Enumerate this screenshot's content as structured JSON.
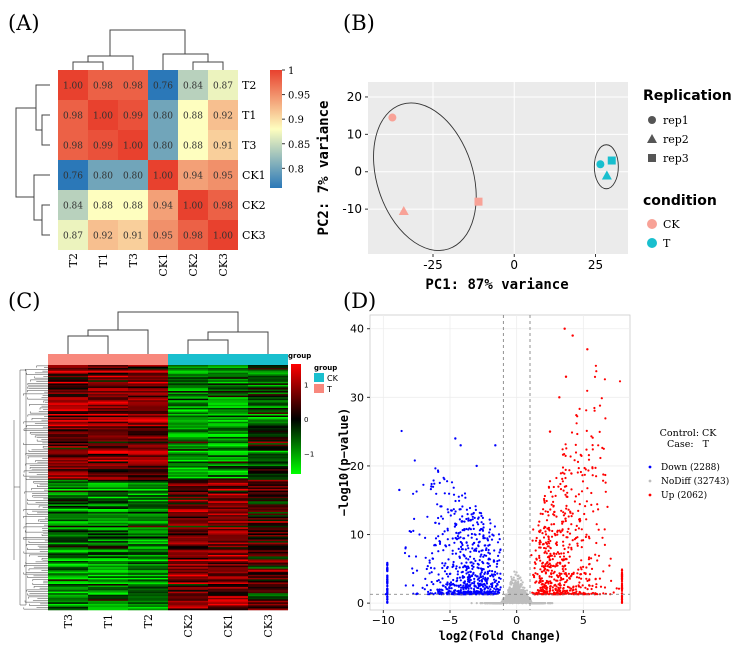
{
  "panels": [
    "(A)",
    "(B)",
    "(C)",
    "(D)"
  ],
  "chart_data": [
    {
      "type": "heatmap",
      "rows": [
        "T2",
        "T1",
        "T3",
        "CK1",
        "CK2",
        "CK3"
      ],
      "cols": [
        "T2",
        "T1",
        "T3",
        "CK1",
        "CK2",
        "CK3"
      ],
      "values": [
        [
          1.0,
          0.98,
          0.98,
          0.76,
          0.84,
          0.87
        ],
        [
          0.98,
          1.0,
          0.99,
          0.8,
          0.88,
          0.92
        ],
        [
          0.98,
          0.99,
          1.0,
          0.8,
          0.88,
          0.91
        ],
        [
          0.76,
          0.8,
          0.8,
          1.0,
          0.94,
          0.95
        ],
        [
          0.84,
          0.88,
          0.88,
          0.94,
          1.0,
          0.98
        ],
        [
          0.87,
          0.92,
          0.91,
          0.95,
          0.98,
          1.0
        ]
      ],
      "value_labels": [
        [
          "1.00",
          "0.98",
          "0.98",
          "0.76",
          "0.84",
          "0.87"
        ],
        [
          "0.98",
          "1.00",
          "0.99",
          "0.80",
          "0.88",
          "0.92"
        ],
        [
          "0.98",
          "0.99",
          "1.00",
          "0.80",
          "0.88",
          "0.91"
        ],
        [
          "0.76",
          "0.80",
          "0.80",
          "1.00",
          "0.94",
          "0.95"
        ],
        [
          "0.84",
          "0.88",
          "0.88",
          "0.94",
          "1.00",
          "0.98"
        ],
        [
          "0.87",
          "0.92",
          "0.91",
          "0.95",
          "0.98",
          "1.00"
        ]
      ],
      "colorbar_ticks": [
        1,
        0.95,
        0.9,
        0.85,
        0.8
      ],
      "colorbar_tick_labels": [
        "1",
        "0.95",
        "0.9",
        "0.85",
        "0.8"
      ],
      "color_range": [
        0.76,
        1.0
      ],
      "colors": [
        "#2b78b8",
        "#fefebf",
        "#e8412e"
      ]
    },
    {
      "type": "scatter",
      "xlabel": "PC1: 87% variance",
      "ylabel": "PC2: 7% variance",
      "xlim": [
        -45,
        35
      ],
      "ylim": [
        -22,
        24
      ],
      "xticks": [
        -25,
        0,
        25
      ],
      "xtick_labels": [
        "-25",
        "0",
        "25"
      ],
      "yticks": [
        -10,
        0,
        10,
        20
      ],
      "ytick_labels": [
        "-10",
        "0",
        "10",
        "20"
      ],
      "grid": true,
      "points": [
        {
          "condition": "CK",
          "rep": "rep1",
          "x": -37.5,
          "y": 14.5
        },
        {
          "condition": "CK",
          "rep": "rep2",
          "x": -34,
          "y": -10.5
        },
        {
          "condition": "CK",
          "rep": "rep3",
          "x": -11,
          "y": -8
        },
        {
          "condition": "T",
          "rep": "rep1",
          "x": 26.5,
          "y": 2
        },
        {
          "condition": "T",
          "rep": "rep2",
          "x": 28.5,
          "y": -1
        },
        {
          "condition": "T",
          "rep": "rep3",
          "x": 30,
          "y": 3
        }
      ],
      "legend": {
        "shape_title": "Replication",
        "shape_items": [
          "rep1",
          "rep2",
          "rep3"
        ],
        "color_title": "condition",
        "color_items": [
          "CK",
          "T"
        ],
        "placement": "right"
      },
      "colors": {
        "CK": "#f8a297",
        "T": "#19bfce"
      }
    },
    {
      "type": "heatmap",
      "columns": [
        "T3",
        "T1",
        "T2",
        "CK2",
        "CK1",
        "CK3"
      ],
      "groups": [
        "T",
        "T",
        "T",
        "CK",
        "CK",
        "CK"
      ],
      "legend_title": "group",
      "legend_items": [
        "CK",
        "T"
      ],
      "colorbar_ticks": [
        1,
        0,
        -1
      ],
      "colorbar_tick_labels": [
        "1",
        "0",
        "−1"
      ],
      "colorbar_title": "group",
      "colors": {
        "high": "#ff0000",
        "mid": "#000000",
        "low": "#00ff00",
        "CK": "#19bfce",
        "T": "#f8887d"
      }
    },
    {
      "type": "scatter",
      "xlabel": "log2(Fold Change)",
      "ylabel": "−log10(p−value)",
      "xlim": [
        -11,
        8.5
      ],
      "ylim": [
        -1,
        42
      ],
      "xticks": [
        -10,
        -5,
        0,
        5
      ],
      "xtick_labels": [
        "−10",
        "−5",
        "0",
        "5"
      ],
      "yticks": [
        0,
        10,
        20,
        30,
        40
      ],
      "ytick_labels": [
        "0",
        "10",
        "20",
        "30",
        "40"
      ],
      "thresholds": {
        "log2fc": [
          -1,
          1
        ],
        "neg_log10_p": 1.3
      },
      "series": [
        {
          "name": "Down (2288)",
          "count": 2288,
          "color": "#0000ff"
        },
        {
          "name": "NoDiff (32743)",
          "count": 32743,
          "color": "#bebebe"
        },
        {
          "name": "Up (2062)",
          "count": 2062,
          "color": "#ff0000"
        }
      ],
      "legend": {
        "control_line": "Control: CK",
        "case_line": "Case:   T",
        "placement": "right"
      }
    }
  ]
}
